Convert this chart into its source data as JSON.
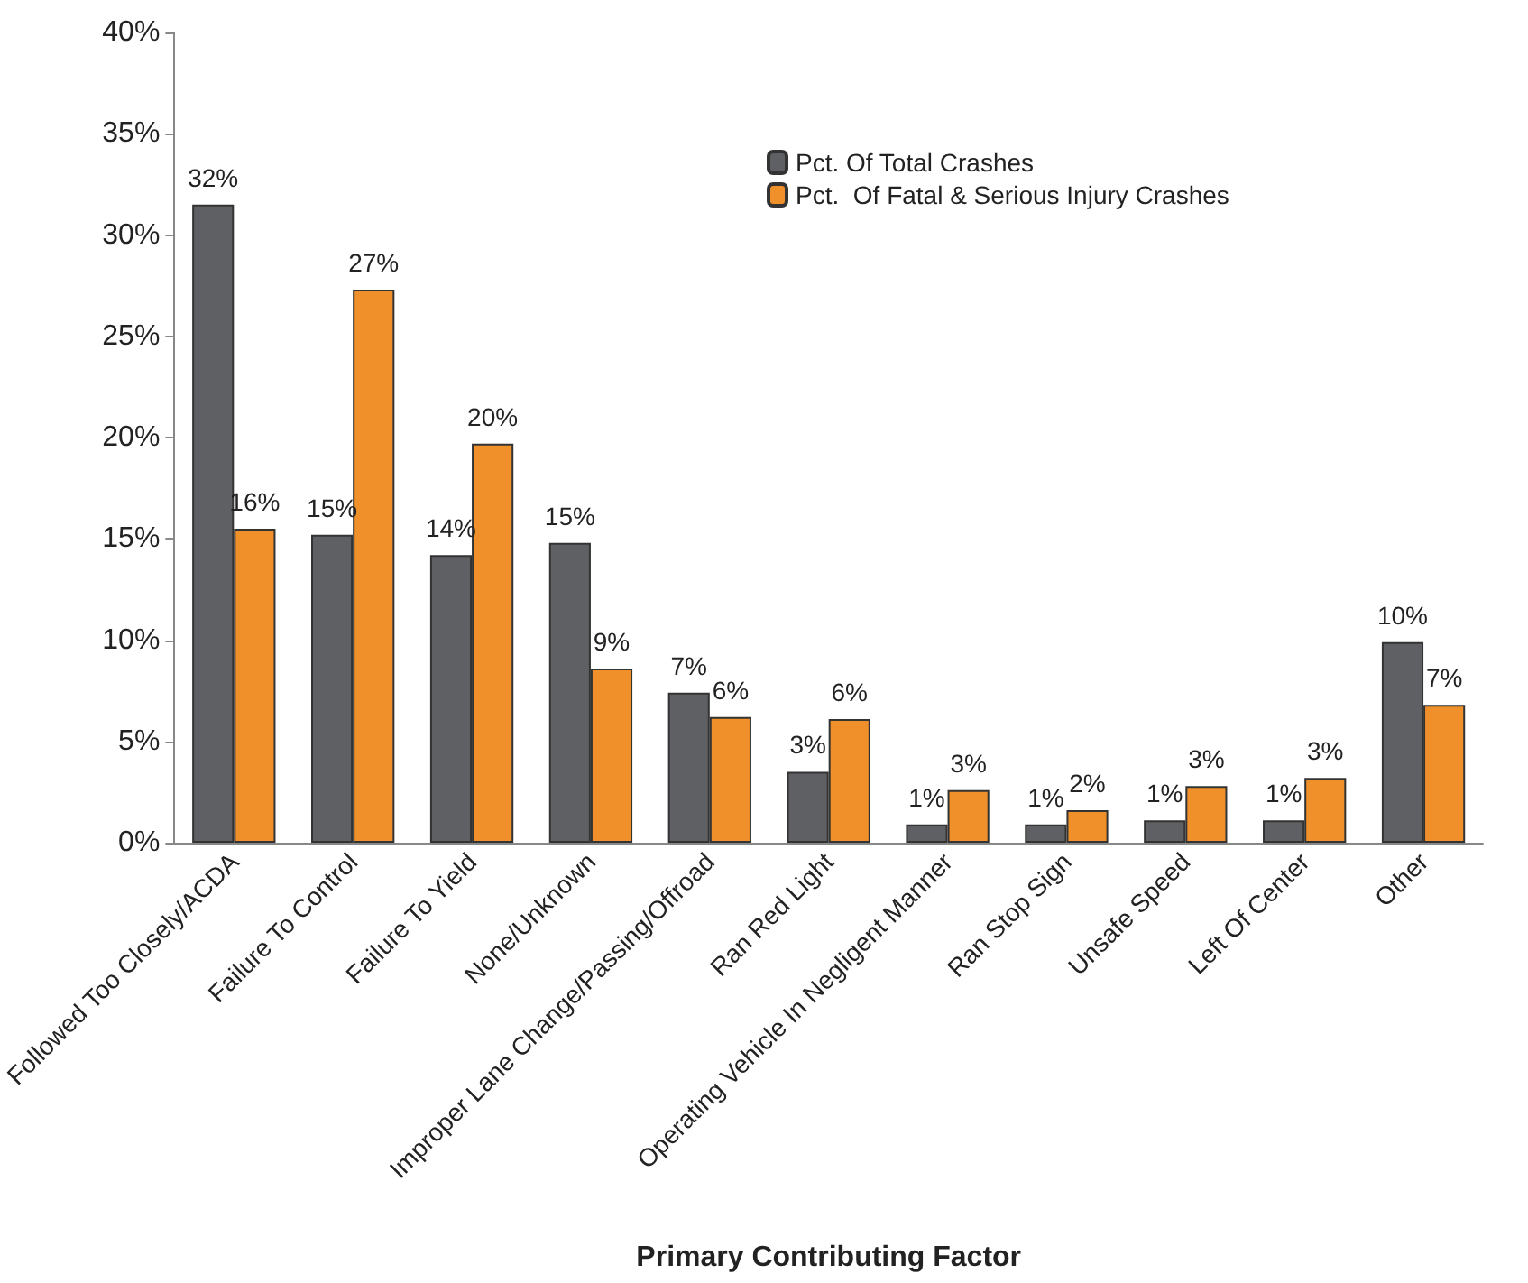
{
  "chart_data": {
    "type": "bar",
    "xlabel": "Primary Contributing Factor",
    "categories": [
      "Followed Too Closely/ACDA",
      "Failure To Control",
      "Failure To Yield",
      "None/Unknown",
      "Improper Lane Change/Passing/Offroad",
      "Ran Red Light",
      "Operating Vehicle In Negligent Manner",
      "Ran Stop Sign",
      "Unsafe Speed",
      "Left Of Center",
      "Other"
    ],
    "series": [
      {
        "name": "Pct. Of Total Crashes",
        "color": "#5f6063",
        "values": [
          31.5,
          15.2,
          14.2,
          14.8,
          7.4,
          3.5,
          0.9,
          0.9,
          1.1,
          1.1,
          9.9
        ],
        "value_labels": [
          "32%",
          "15%",
          "14%",
          "15%",
          "7%",
          "3%",
          "1%",
          "1%",
          "1%",
          "1%",
          "10%"
        ]
      },
      {
        "name": "Pct.  Of Fatal & Serious Injury Crashes",
        "color": "#f0902a",
        "values": [
          15.5,
          27.3,
          19.7,
          8.6,
          6.2,
          6.1,
          2.6,
          1.6,
          2.8,
          3.2,
          6.8
        ],
        "value_labels": [
          "16%",
          "27%",
          "20%",
          "9%",
          "6%",
          "6%",
          "3%",
          "2%",
          "3%",
          "3%",
          "7%"
        ]
      }
    ],
    "ylim": [
      0,
      40
    ],
    "yticks": [
      {
        "value": 0,
        "label": "0%"
      },
      {
        "value": 5,
        "label": "5%"
      },
      {
        "value": 10,
        "label": "10%"
      },
      {
        "value": 15,
        "label": "15%"
      },
      {
        "value": 20,
        "label": "20%"
      },
      {
        "value": 25,
        "label": "25%"
      },
      {
        "value": 30,
        "label": "30%"
      },
      {
        "value": 35,
        "label": "35%"
      },
      {
        "value": 40,
        "label": "40%"
      }
    ],
    "legend": "top",
    "grid": false
  }
}
